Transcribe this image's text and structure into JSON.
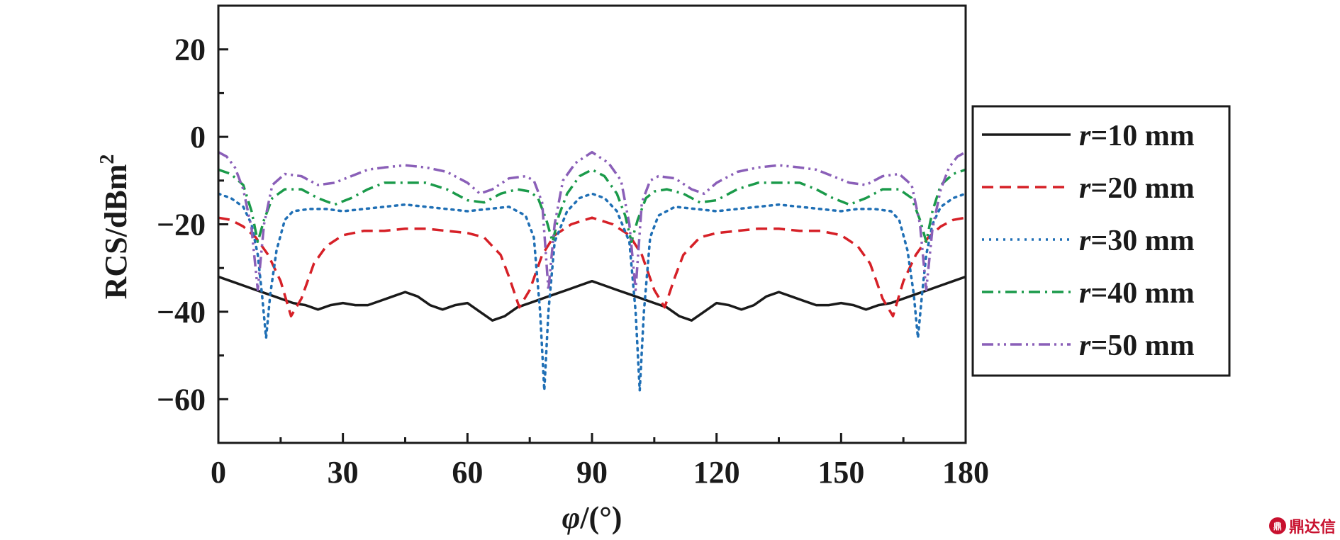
{
  "chart_data": {
    "type": "line",
    "xlabel_symbol": "φ",
    "xlabel_unit": "/(°)",
    "ylabel": "RCS/dBm",
    "ylabel_sup": "2",
    "xlim": [
      0,
      180
    ],
    "ylim": [
      -70,
      30
    ],
    "xticks": [
      "0",
      "30",
      "60",
      "90",
      "120",
      "150",
      "180"
    ],
    "yticks": [
      "20",
      "0",
      "−20",
      "−40",
      "−60"
    ],
    "legend_position": "right",
    "series": [
      {
        "name": "r=10 mm",
        "r_symbol": "r",
        "r_value": "=10 mm",
        "color": "#1a1a1a",
        "style": "solid",
        "x": [
          0,
          3,
          6,
          9,
          12,
          15,
          18,
          21,
          24,
          27,
          30,
          33,
          36,
          39,
          42,
          45,
          48,
          51,
          54,
          57,
          60,
          63,
          66,
          69,
          72,
          75,
          78,
          81,
          84,
          87,
          90,
          93,
          96,
          99,
          102,
          105,
          108,
          111,
          114,
          117,
          120,
          123,
          126,
          129,
          132,
          135,
          138,
          141,
          144,
          147,
          150,
          153,
          156,
          159,
          162,
          165,
          168,
          171,
          174,
          177,
          180
        ],
        "y": [
          -32,
          -33,
          -34,
          -35,
          -36,
          -37,
          -38,
          -38.5,
          -39.5,
          -38.5,
          -38,
          -38.5,
          -38.5,
          -37.5,
          -36.5,
          -35.5,
          -36.5,
          -38.5,
          -39.5,
          -38.5,
          -38,
          -40,
          -42,
          -41,
          -39,
          -38,
          -37,
          -36,
          -35,
          -34,
          -33,
          -34,
          -35,
          -36,
          -37,
          -38,
          -39,
          -41,
          -42,
          -40,
          -38,
          -38.5,
          -39.5,
          -38.5,
          -36.5,
          -35.5,
          -36.5,
          -37.5,
          -38.5,
          -38.5,
          -38,
          -38.5,
          -39.5,
          -38.5,
          -38,
          -37,
          -36,
          -35,
          -34,
          -33,
          -32
        ]
      },
      {
        "name": "r=20 mm",
        "r_symbol": "r",
        "r_value": "=20 mm",
        "color": "#d62027",
        "style": "dashed",
        "x": [
          0,
          3,
          6,
          9,
          12,
          15,
          17.5,
          20,
          23,
          26,
          30,
          35,
          40,
          45,
          50,
          55,
          60,
          64,
          68,
          70,
          72.5,
          75,
          78,
          81,
          85,
          90,
          95,
          99,
          102,
          105,
          107.5,
          110,
          112,
          116,
          120,
          125,
          130,
          135,
          140,
          145,
          150,
          154,
          157,
          160,
          162.5,
          165,
          168,
          171,
          174,
          177,
          180
        ],
        "y": [
          -18.5,
          -19,
          -20.5,
          -23,
          -27,
          -33,
          -41,
          -37,
          -29,
          -25,
          -22.5,
          -21.5,
          -21.5,
          -21,
          -21,
          -21.5,
          -22,
          -23,
          -27,
          -32,
          -39,
          -35,
          -27,
          -22.5,
          -20,
          -18.5,
          -20,
          -22.5,
          -27,
          -35,
          -39,
          -32,
          -27,
          -23,
          -22,
          -21.5,
          -21,
          -21,
          -21.5,
          -21.5,
          -22.5,
          -25,
          -29,
          -37,
          -41,
          -33,
          -27,
          -23,
          -20.5,
          -19,
          -18.5
        ]
      },
      {
        "name": "r=30 mm",
        "r_symbol": "r",
        "r_value": "=30 mm",
        "color": "#1f6fb5",
        "style": "dotted",
        "x": [
          0,
          3,
          6,
          8,
          9.5,
          10.5,
          11.5,
          12.5,
          14,
          16,
          18,
          22,
          26,
          30,
          35,
          40,
          45,
          50,
          55,
          60,
          65,
          70,
          74,
          76,
          77.5,
          78.5,
          79.5,
          81,
          84,
          87,
          90,
          93,
          96,
          99,
          100.5,
          101.5,
          102.5,
          104,
          106,
          110,
          115,
          120,
          125,
          130,
          135,
          140,
          145,
          150,
          154,
          158,
          162,
          164,
          166,
          167.5,
          168.5,
          169.5,
          170.5,
          172,
          174,
          177,
          180
        ],
        "y": [
          -13,
          -14,
          -16,
          -20,
          -27,
          -36,
          -46,
          -36,
          -26,
          -19,
          -17,
          -16.5,
          -16.5,
          -17,
          -16.5,
          -16,
          -15.5,
          -16,
          -16.5,
          -17,
          -16.5,
          -16,
          -18,
          -23,
          -40,
          -58,
          -40,
          -24,
          -17,
          -14,
          -13,
          -14,
          -17,
          -24,
          -40,
          -58,
          -40,
          -23,
          -18,
          -16,
          -16.5,
          -17,
          -16.5,
          -16,
          -15.5,
          -16,
          -16.5,
          -17,
          -16.5,
          -16.5,
          -17,
          -19,
          -26,
          -36,
          -46,
          -36,
          -27,
          -20,
          -16,
          -14,
          -13
        ]
      },
      {
        "name": "r=40 mm",
        "r_symbol": "r",
        "r_value": "=40 mm",
        "color": "#1a9a4a",
        "style": "dash-dot",
        "x": [
          0,
          3,
          6,
          8,
          9.5,
          11,
          13,
          16,
          20,
          24,
          28,
          32,
          36,
          40,
          45,
          50,
          55,
          60,
          64,
          68,
          72,
          75,
          77,
          79,
          80.5,
          82,
          84,
          87,
          90,
          93,
          96,
          98,
          99.5,
          101,
          103,
          105,
          108,
          112,
          116,
          120,
          125,
          130,
          135,
          140,
          144,
          148,
          152,
          156,
          160,
          164,
          167,
          169,
          170.5,
          172,
          174,
          177,
          180
        ],
        "y": [
          -7.5,
          -8.5,
          -11,
          -17,
          -24,
          -19,
          -14,
          -12,
          -12,
          -14,
          -15.5,
          -14,
          -12,
          -10.5,
          -10.5,
          -10.5,
          -12,
          -14.5,
          -15,
          -13,
          -12,
          -12.5,
          -14,
          -19,
          -24,
          -18,
          -13,
          -9,
          -7.5,
          -9,
          -13,
          -18,
          -24,
          -19,
          -14,
          -12.5,
          -12,
          -13,
          -15,
          -14.5,
          -12,
          -10.5,
          -10.5,
          -10.5,
          -12,
          -14,
          -15.5,
          -14,
          -12,
          -12,
          -14,
          -19,
          -24,
          -17,
          -11,
          -8.5,
          -7.5
        ]
      },
      {
        "name": "r=50 mm",
        "r_symbol": "r",
        "r_value": "=50 mm",
        "color": "#8a5fb8",
        "style": "dash-dot-dot",
        "x": [
          0,
          2,
          4,
          6,
          8,
          9.5,
          11,
          13,
          16,
          20,
          24,
          28,
          32,
          36,
          40,
          45,
          50,
          55,
          60,
          63,
          66,
          70,
          74,
          76,
          78,
          79.5,
          81,
          83,
          86,
          90,
          94,
          97,
          99,
          100.5,
          102,
          104,
          106,
          110,
          114,
          117,
          120,
          125,
          130,
          135,
          140,
          144,
          148,
          152,
          156,
          160,
          164,
          167,
          169,
          170.5,
          172,
          174,
          176,
          178,
          180
        ],
        "y": [
          -3.5,
          -4.5,
          -7,
          -12,
          -21,
          -35,
          -20,
          -11,
          -8.5,
          -9,
          -11,
          -10.5,
          -9,
          -7.5,
          -7,
          -6.5,
          -7,
          -8,
          -10.5,
          -13,
          -12,
          -9.5,
          -9,
          -10,
          -15,
          -35,
          -20,
          -10,
          -6,
          -3.5,
          -6,
          -10,
          -20,
          -35,
          -15,
          -10,
          -9,
          -9.5,
          -12,
          -13,
          -10.5,
          -8,
          -7,
          -6.5,
          -7,
          -7.5,
          -9,
          -10.5,
          -11,
          -9,
          -8.5,
          -11,
          -20,
          -35,
          -21,
          -12,
          -7,
          -4.5,
          -3.5
        ]
      }
    ]
  },
  "watermark": {
    "badge": "鼎",
    "text": "鼎达信"
  }
}
